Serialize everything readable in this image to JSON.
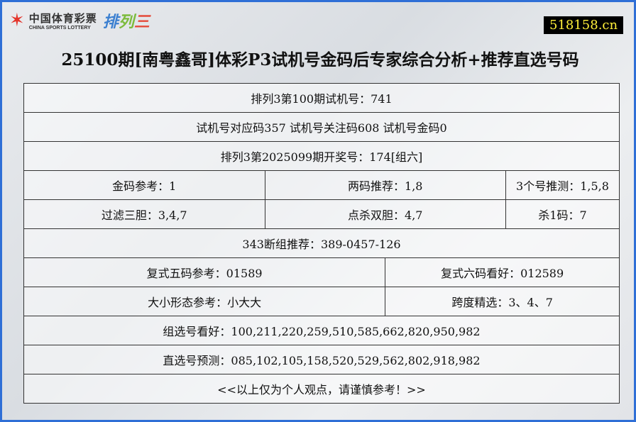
{
  "logo": {
    "cn": "中国体育彩票",
    "en": "CHINA SPORTS LOTTERY",
    "game": [
      "排",
      "列",
      "三"
    ]
  },
  "site": "518158.cn",
  "title": "25100期[南粤鑫哥]体彩P3试机号金码后专家综合分析+推荐直选号码",
  "rows": {
    "r1": "排列3第100期试机号：741",
    "r2": "试机号对应码357 试机号关注码608 试机号金码0",
    "r3": "排列3第2025099期开奖号：174[组六]",
    "r4": [
      "金码参考：1",
      "两码推荐：1,8",
      "3个号推测：1,5,8"
    ],
    "r5": [
      "过滤三胆：3,4,7",
      "点杀双胆：4,7",
      "杀1码：7"
    ],
    "r6": "343断组推荐：389-0457-126",
    "r7": [
      "复式五码参考：01589",
      "复式六码看好：012589"
    ],
    "r8": [
      "大小形态参考：小大大",
      "跨度精选：3、4、7"
    ],
    "r9": "组选号看好：100,211,220,259,510,585,662,820,950,982",
    "r10": "直选号预测：085,102,105,158,520,529,562,802,918,982",
    "r11": "<<以上仅为个人观点，请谨慎参考！>>"
  },
  "colors": {
    "border": "#2f6fd6",
    "site_bg": "#000000",
    "site_text": "#ffef3a"
  }
}
